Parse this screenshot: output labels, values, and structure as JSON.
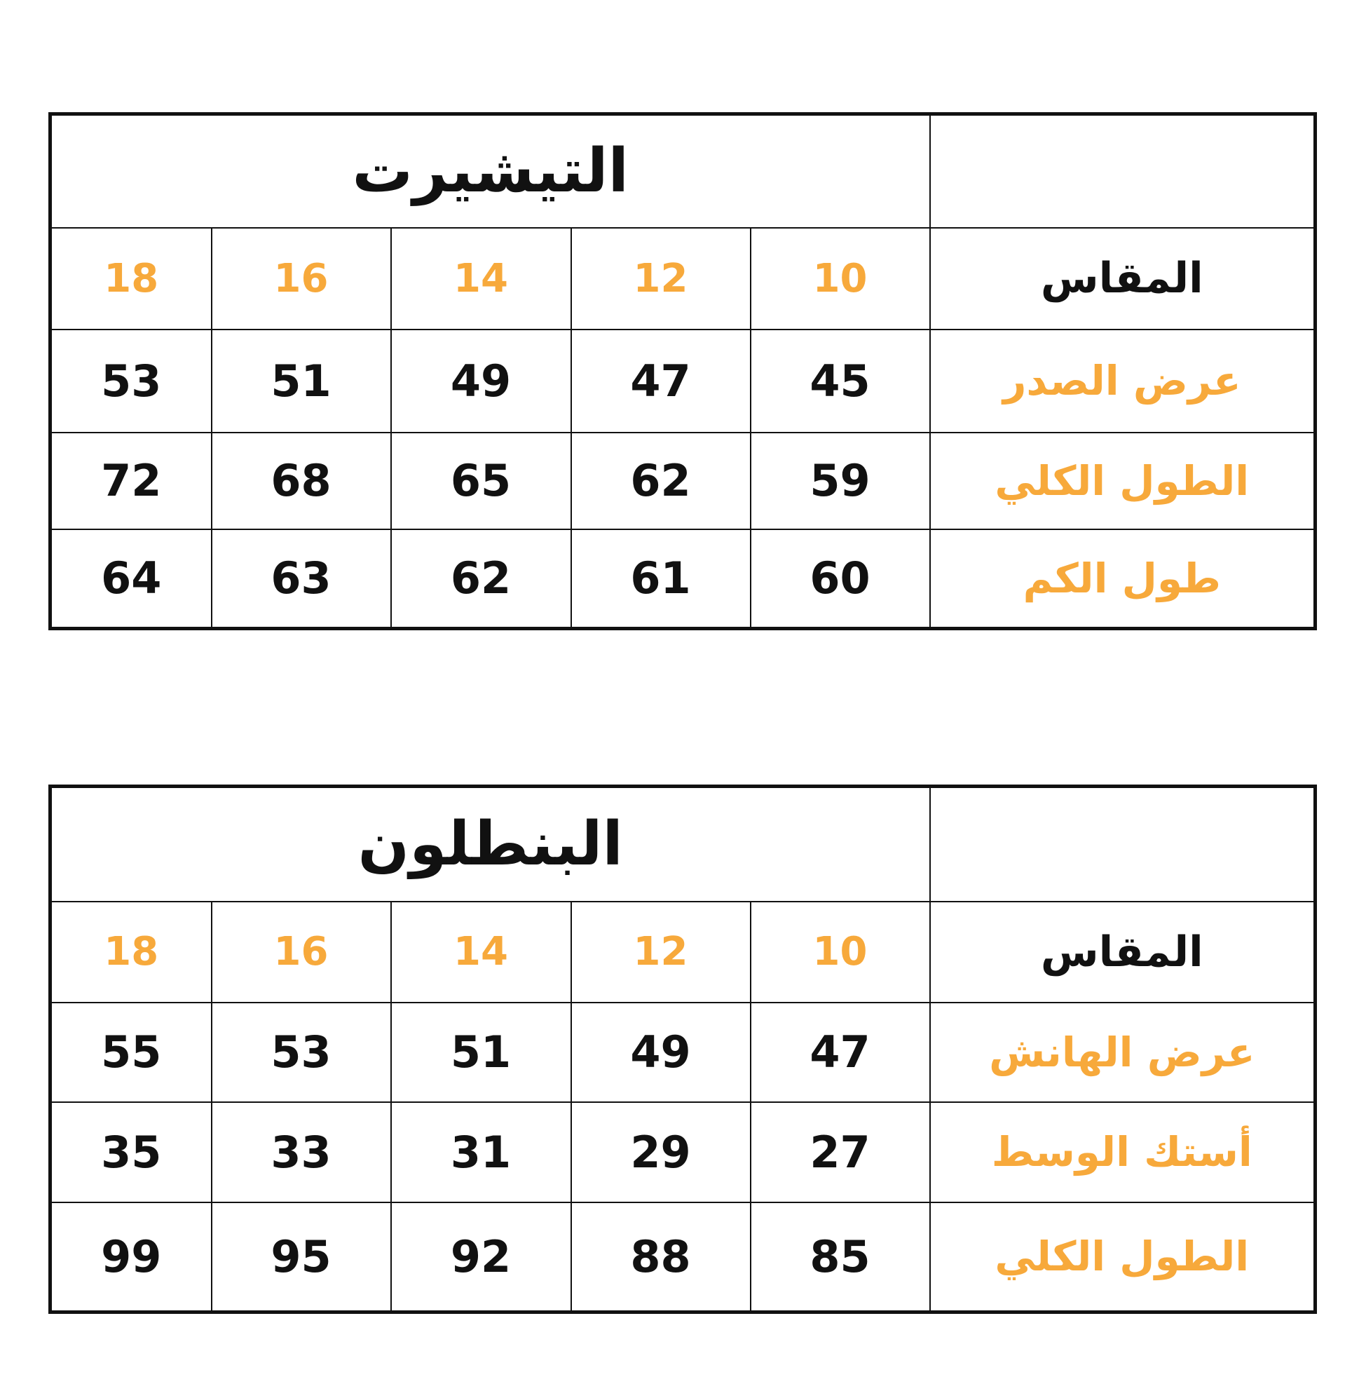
{
  "colors": {
    "accent": "#F7A93B",
    "text": "#111111",
    "border": "#111111"
  },
  "tables": [
    {
      "title": "التيشيرت",
      "size_label": "المقاس",
      "sizes": [
        "18",
        "16",
        "14",
        "12",
        "10"
      ],
      "rows": [
        {
          "label": "عرض الصدر",
          "values": [
            "53",
            "51",
            "49",
            "47",
            "45"
          ]
        },
        {
          "label": "الطول الكلي",
          "values": [
            "72",
            "68",
            "65",
            "62",
            "59"
          ]
        },
        {
          "label": "طول الكم",
          "values": [
            "64",
            "63",
            "62",
            "61",
            "60"
          ]
        }
      ]
    },
    {
      "title": "البنطلون",
      "size_label": "المقاس",
      "sizes": [
        "18",
        "16",
        "14",
        "12",
        "10"
      ],
      "rows": [
        {
          "label": "عرض الهانش",
          "values": [
            "55",
            "53",
            "51",
            "49",
            "47"
          ]
        },
        {
          "label": "أستك الوسط",
          "values": [
            "35",
            "33",
            "31",
            "29",
            "27"
          ]
        },
        {
          "label": "الطول الكلي",
          "values": [
            "99",
            "95",
            "92",
            "88",
            "85"
          ]
        }
      ]
    }
  ]
}
